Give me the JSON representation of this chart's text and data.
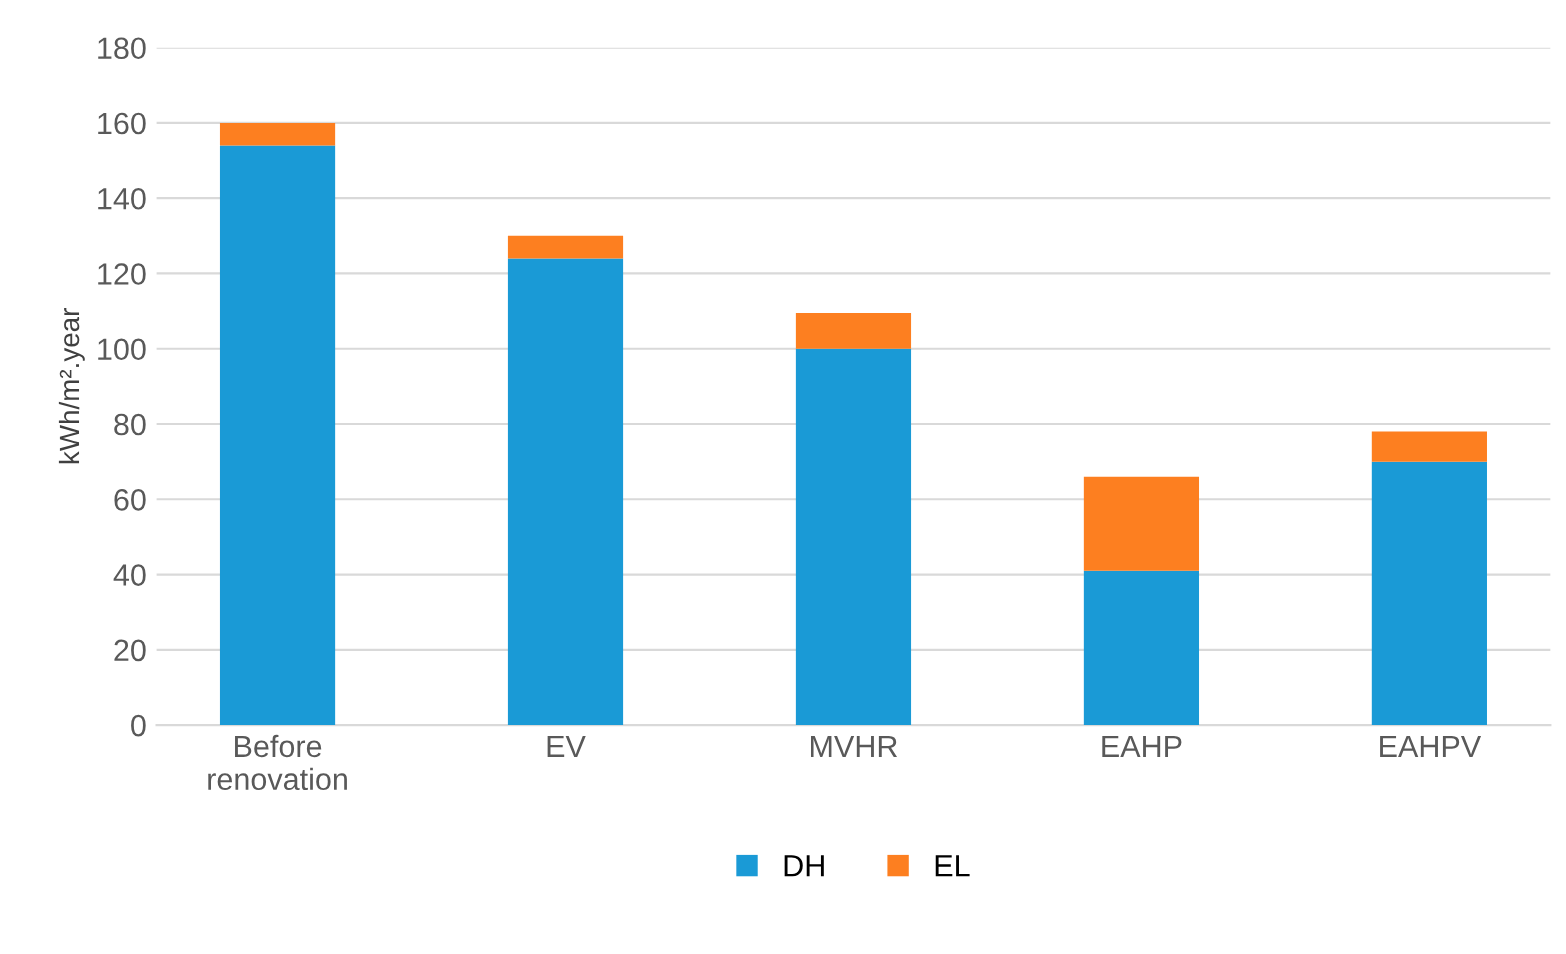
{
  "chart_data": {
    "type": "bar",
    "stacked": true,
    "ylabel": "kWh/m².year",
    "categories": [
      "Before\nrenovation",
      "EV",
      "MVHR",
      "EAHP",
      "EAHPV"
    ],
    "series": [
      {
        "name": "DH",
        "color": "#1a9ad6",
        "values": [
          154,
          124,
          100,
          41,
          70
        ]
      },
      {
        "name": "EL",
        "color": "#fd7f20",
        "values": [
          6,
          6,
          9.5,
          25,
          8
        ]
      }
    ],
    "ylim": [
      0,
      180
    ],
    "yticks": [
      0,
      20,
      40,
      60,
      80,
      100,
      120,
      140,
      160,
      180
    ],
    "grid": "y",
    "legend": "bottom"
  }
}
